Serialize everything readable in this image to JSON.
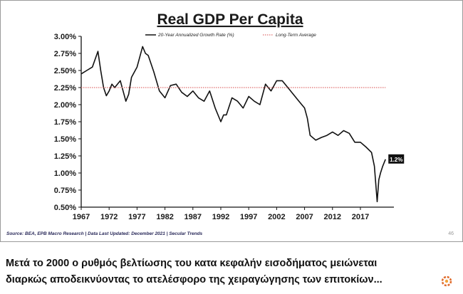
{
  "chart_data": {
    "type": "line",
    "title": "Real GDP Per Capita",
    "xlabel": "",
    "ylabel": "",
    "xlim": [
      1967,
      2023
    ],
    "ylim": [
      0.5,
      3.0
    ],
    "x_ticks": [
      "1967",
      "1972",
      "1977",
      "1982",
      "1987",
      "1992",
      "1997",
      "2002",
      "2007",
      "2012",
      "2017"
    ],
    "y_ticks": [
      "3.00%",
      "2.75%",
      "2.50%",
      "2.25%",
      "2.00%",
      "1.75%",
      "1.50%",
      "1.25%",
      "1.00%",
      "0.75%",
      "0.50%"
    ],
    "series": [
      {
        "name": "20-Year Annualized Growth Rate (%)",
        "color": "#111111",
        "x": [
          1967,
          1968,
          1969,
          1970,
          1970.5,
          1971,
          1971.5,
          1972,
          1972.5,
          1973,
          1974,
          1974.5,
          1975,
          1975.5,
          1976,
          1977,
          1977.5,
          1978,
          1978.5,
          1979,
          1979.5,
          1980,
          1981,
          1982,
          1983,
          1984,
          1985,
          1986,
          1987,
          1988,
          1989,
          1990,
          1991,
          1992,
          1992.5,
          1993,
          1994,
          1995,
          1996,
          1997,
          1998,
          1999,
          2000,
          2001,
          2002,
          2003,
          2004,
          2005,
          2006,
          2007,
          2007.5,
          2008,
          2009,
          2010,
          2011,
          2012,
          2013,
          2014,
          2015,
          2016,
          2017,
          2018,
          2019,
          2019.5,
          2020,
          2020.3,
          2020.6,
          2021,
          2021.5
        ],
        "values": [
          2.45,
          2.5,
          2.55,
          2.78,
          2.5,
          2.25,
          2.13,
          2.2,
          2.3,
          2.25,
          2.35,
          2.2,
          2.05,
          2.15,
          2.4,
          2.55,
          2.7,
          2.85,
          2.75,
          2.72,
          2.6,
          2.48,
          2.2,
          2.1,
          2.28,
          2.3,
          2.18,
          2.12,
          2.2,
          2.1,
          2.05,
          2.2,
          1.95,
          1.75,
          1.85,
          1.85,
          2.1,
          2.05,
          1.95,
          2.12,
          2.05,
          2.0,
          2.3,
          2.2,
          2.35,
          2.35,
          2.25,
          2.15,
          2.05,
          1.95,
          1.8,
          1.55,
          1.48,
          1.52,
          1.55,
          1.6,
          1.55,
          1.62,
          1.58,
          1.45,
          1.45,
          1.38,
          1.3,
          1.1,
          0.58,
          0.9,
          1.0,
          1.1,
          1.2
        ]
      },
      {
        "name": "Long-Term Average",
        "color": "#e07070",
        "style": "dotted",
        "x": [
          1967,
          2021.5
        ],
        "values": [
          2.25,
          2.25
        ]
      }
    ],
    "annotations": [
      {
        "label": "1.2%",
        "x": 2021.5,
        "y": 1.2
      }
    ]
  },
  "footer": {
    "source": "Source: BEA, EPB Macro Research   |   Data Last Updated: December 2021   |   Secular Trends",
    "page_number": "46"
  },
  "caption": {
    "line1": "Μετά το 2000 ο ρυθμός βελτίωσης του κατα κεφαλήν εισοδήματος μειώνεται",
    "line2": "διαρκώς αποδεικνύοντας το ατελέσφορο της χειραγώγησης των επιτοκίων..."
  }
}
